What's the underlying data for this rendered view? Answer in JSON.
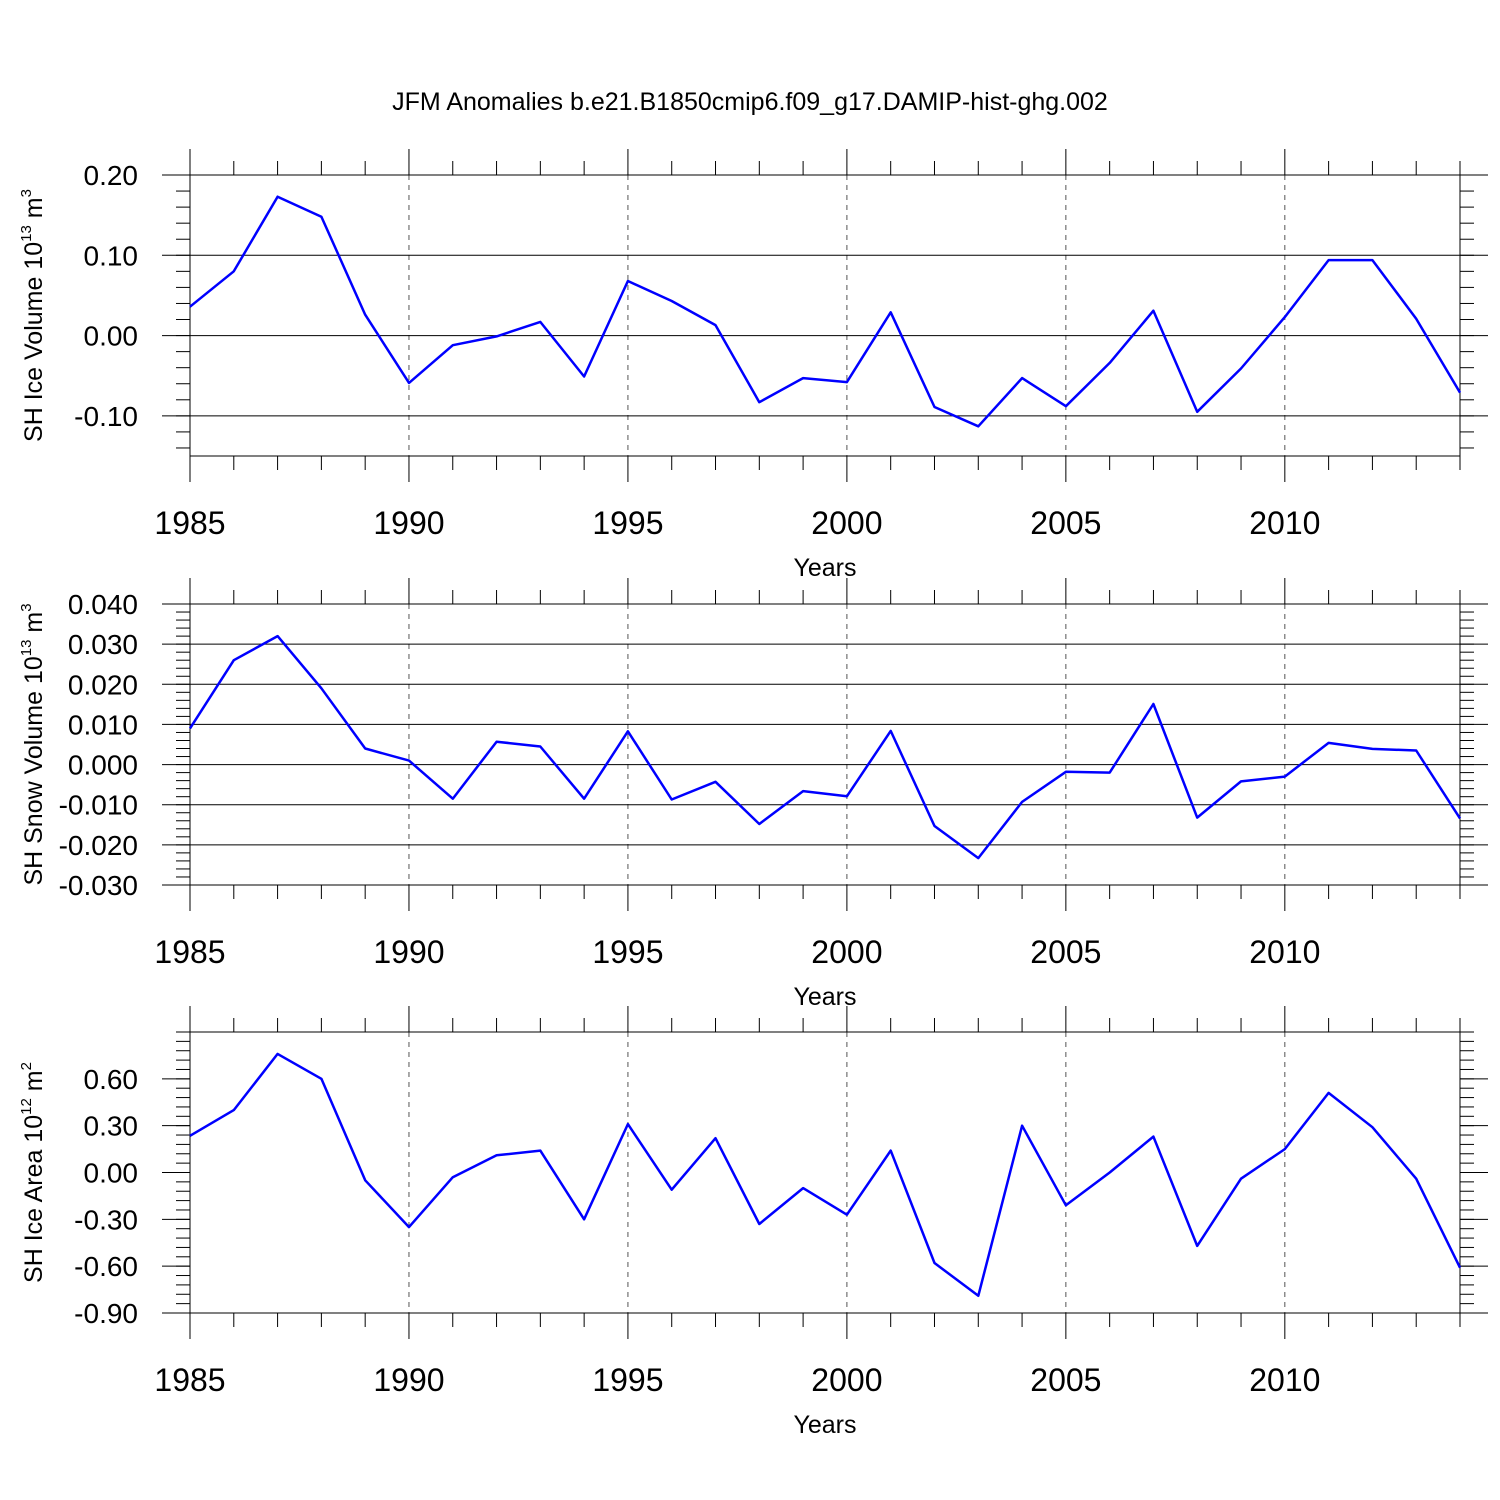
{
  "figure": {
    "title": "JFM Anomalies b.e21.B1850cmip6.f09_g17.DAMIP-hist-ghg.002",
    "line_color": "#0000ff",
    "axis_color": "#000000"
  },
  "chart_data": [
    {
      "type": "line",
      "title": "JFM Anomalies b.e21.B1850cmip6.f09_g17.DAMIP-hist-ghg.002",
      "xlabel": "Years",
      "ylabel": {
        "text": "SH Ice Volume 10",
        "exp1": "13",
        "unit": " m",
        "exp2": "3"
      },
      "xlim": [
        1985,
        2014
      ],
      "ylim": [
        -0.15,
        0.2
      ],
      "yticks": [
        0.2,
        0.1,
        0.0,
        -0.1
      ],
      "ytick_labels": [
        "0.20",
        "0.10",
        "0.00",
        "-0.10"
      ],
      "ytick_hlines": true,
      "yminor_step": 0.02,
      "xticks": [
        1985,
        1990,
        1995,
        2000,
        2005,
        2010
      ],
      "xtick_labels": [
        "1985",
        "1990",
        "1995",
        "2000",
        "2005",
        "2010"
      ],
      "x": [
        1985,
        1986,
        1987,
        1988,
        1989,
        1990,
        1991,
        1992,
        1993,
        1994,
        1995,
        1996,
        1997,
        1998,
        1999,
        2000,
        2001,
        2002,
        2003,
        2004,
        2005,
        2006,
        2007,
        2008,
        2009,
        2010,
        2011,
        2012,
        2013,
        2014
      ],
      "series": [
        {
          "name": "SH Ice Volume",
          "values": [
            0.036,
            0.08,
            0.173,
            0.148,
            0.026,
            -0.059,
            -0.012,
            -0.001,
            0.017,
            -0.051,
            0.068,
            0.043,
            0.013,
            -0.083,
            -0.053,
            -0.058,
            0.029,
            -0.089,
            -0.113,
            -0.053,
            -0.088,
            -0.034,
            0.031,
            -0.095,
            -0.041,
            0.023,
            0.094,
            0.094,
            0.021,
            -0.071
          ]
        }
      ]
    },
    {
      "type": "line",
      "xlabel": "Years",
      "ylabel": {
        "text": "SH Snow Volume 10",
        "exp1": "13",
        "unit": " m",
        "exp2": "3"
      },
      "xlim": [
        1985,
        2014
      ],
      "ylim": [
        -0.03,
        0.04
      ],
      "yticks": [
        0.04,
        0.03,
        0.02,
        0.01,
        0.0,
        -0.01,
        -0.02,
        -0.03
      ],
      "ytick_labels": [
        "0.040",
        "0.030",
        "0.020",
        "0.010",
        "0.000",
        "-0.010",
        "-0.020",
        "-0.030"
      ],
      "ytick_hlines": true,
      "yminor_step": 0.002,
      "xticks": [
        1985,
        1990,
        1995,
        2000,
        2005,
        2010
      ],
      "xtick_labels": [
        "1985",
        "1990",
        "1995",
        "2000",
        "2005",
        "2010"
      ],
      "x": [
        1985,
        1986,
        1987,
        1988,
        1989,
        1990,
        1991,
        1992,
        1993,
        1994,
        1995,
        1996,
        1997,
        1998,
        1999,
        2000,
        2001,
        2002,
        2003,
        2004,
        2005,
        2006,
        2007,
        2008,
        2009,
        2010,
        2011,
        2012,
        2013,
        2014
      ],
      "series": [
        {
          "name": "SH Snow Volume",
          "values": [
            0.009,
            0.026,
            0.032,
            0.019,
            0.004,
            0.001,
            -0.0085,
            0.0057,
            0.0045,
            -0.0085,
            0.0083,
            -0.0087,
            -0.0043,
            -0.0148,
            -0.0066,
            -0.0079,
            0.0084,
            -0.0153,
            -0.0233,
            -0.0093,
            -0.0018,
            -0.002,
            0.0151,
            -0.0132,
            -0.0042,
            -0.003,
            0.0054,
            0.0039,
            0.0035,
            -0.0134
          ]
        }
      ]
    },
    {
      "type": "line",
      "xlabel": "Years",
      "ylabel": {
        "text": "SH Ice Area 10",
        "exp1": "12",
        "unit": " m",
        "exp2": "2"
      },
      "xlim": [
        1985,
        2014
      ],
      "ylim": [
        -0.9,
        0.9
      ],
      "yticks": [
        0.6,
        0.3,
        0.0,
        -0.3,
        -0.6,
        -0.9
      ],
      "ytick_labels": [
        "0.60",
        "0.30",
        "0.00",
        "-0.30",
        "-0.60",
        "-0.90"
      ],
      "ytick_hlines": false,
      "yminor_step": 0.06,
      "xticks": [
        1985,
        1990,
        1995,
        2000,
        2005,
        2010
      ],
      "xtick_labels": [
        "1985",
        "1990",
        "1995",
        "2000",
        "2005",
        "2010"
      ],
      "x": [
        1985,
        1986,
        1987,
        1988,
        1989,
        1990,
        1991,
        1992,
        1993,
        1994,
        1995,
        1996,
        1997,
        1998,
        1999,
        2000,
        2001,
        2002,
        2003,
        2004,
        2005,
        2006,
        2007,
        2008,
        2009,
        2010,
        2011,
        2012,
        2013,
        2014
      ],
      "series": [
        {
          "name": "SH Ice Area",
          "values": [
            0.235,
            0.4,
            0.76,
            0.6,
            -0.05,
            -0.35,
            -0.03,
            0.11,
            0.14,
            -0.3,
            0.31,
            -0.11,
            0.22,
            -0.33,
            -0.1,
            -0.27,
            0.14,
            -0.58,
            -0.79,
            0.3,
            -0.21,
            0.0,
            0.23,
            -0.47,
            -0.04,
            0.15,
            0.51,
            0.29,
            -0.04,
            -0.61
          ]
        }
      ]
    }
  ]
}
